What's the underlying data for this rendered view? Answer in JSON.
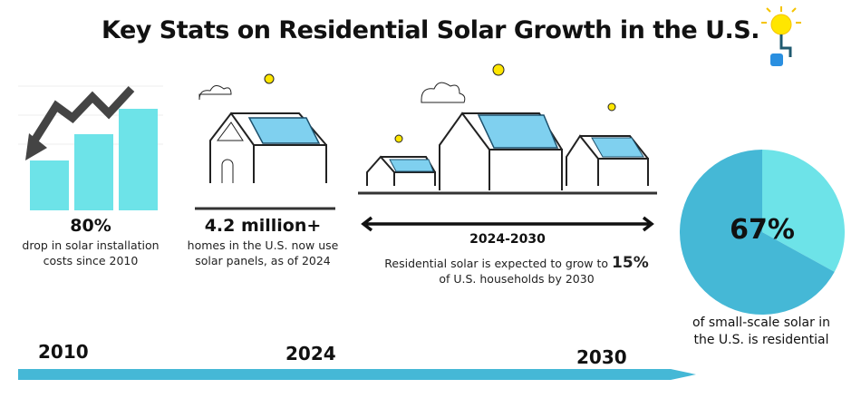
{
  "title": "Key Stats on Residential Solar Growth in the U.S.",
  "stats": [
    {
      "value": "80%",
      "caption_line1": "drop in solar installation",
      "caption_line2": "costs since 2010"
    },
    {
      "value": "4.2 million+",
      "caption_line1": "homes in the U.S. now use",
      "caption_line2": "solar panels, as of 2024"
    },
    {
      "range": "2024-2030",
      "caption_line1": "Residential solar is expected to grow to",
      "value": "15%",
      "caption_line2": "of U.S. households by 2030"
    },
    {
      "value": "67%",
      "caption_line1": "of small-scale solar in",
      "caption_line2": "the U.S. is residential"
    }
  ],
  "pie": {
    "residential_share": 67,
    "colors": {
      "residential": "#45b8d6",
      "other": "#6de3e8"
    }
  },
  "bars": {
    "relative_heights": [
      0.5,
      0.75,
      1
    ],
    "color": "#6de3e8",
    "trend_arrow": "down"
  },
  "timeline": {
    "years": [
      "2010",
      "2024",
      "2030"
    ],
    "color": "#45b8d6"
  },
  "icons": [
    "sun-plug-icon",
    "sun-icon",
    "house-icon",
    "solar-panel-icon",
    "cloud-icon",
    "double-arrow-icon"
  ]
}
